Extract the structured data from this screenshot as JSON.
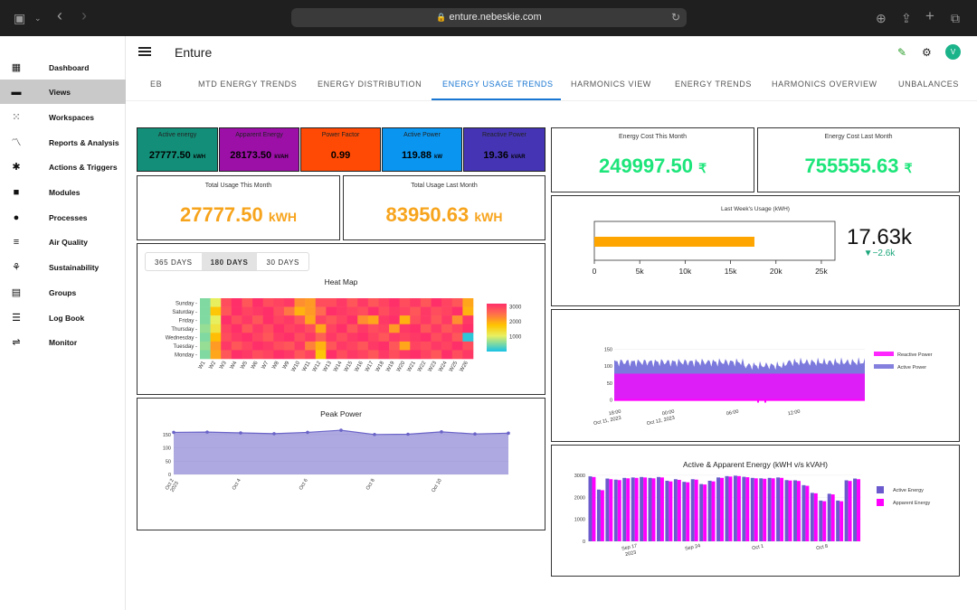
{
  "browser": {
    "url": "enture.nebeskie.com"
  },
  "app": {
    "title": "Enture",
    "avatar_initial": "V"
  },
  "sidebar": {
    "items": [
      {
        "label": "Dashboard",
        "icon": "dashboard-icon"
      },
      {
        "label": "Views",
        "icon": "views-icon",
        "active": true
      },
      {
        "label": "Workspaces",
        "icon": "workspaces-icon"
      },
      {
        "label": "Reports & Analysis",
        "icon": "reports-icon"
      },
      {
        "label": "Actions & Triggers",
        "icon": "alarm-icon"
      },
      {
        "label": "Modules",
        "icon": "modules-icon"
      },
      {
        "label": "Processes",
        "icon": "processes-icon"
      },
      {
        "label": "Air Quality",
        "icon": "air-icon"
      },
      {
        "label": "Sustainability",
        "icon": "sprout-icon"
      },
      {
        "label": "Groups",
        "icon": "groups-icon"
      },
      {
        "label": "Log Book",
        "icon": "logbook-icon"
      },
      {
        "label": "Monitor",
        "icon": "monitor-icon"
      }
    ]
  },
  "tabs": [
    "EB",
    "MTD ENERGY TRENDS",
    "ENERGY DISTRIBUTION",
    "ENERGY USAGE TRENDS",
    "HARMONICS VIEW",
    "ENERGY TRENDS",
    "HARMONICS OVERVIEW",
    "UNBALANCES"
  ],
  "active_tab": "ENERGY USAGE TRENDS",
  "kpis": [
    {
      "label": "Active energy",
      "value": "27777.50",
      "unit": "kWH",
      "color": "#138f79"
    },
    {
      "label": "Apparent Energy",
      "value": "28173.50",
      "unit": "kVAH",
      "color": "#9c10a8"
    },
    {
      "label": "Power Factor",
      "value": "0.99",
      "unit": "",
      "color": "#ff4a05"
    },
    {
      "label": "Active Power",
      "value": "119.88",
      "unit": "kW",
      "color": "#0a96f0"
    },
    {
      "label": "Reactive Power",
      "value": "19.36",
      "unit": "kVAR",
      "color": "#4535b4"
    }
  ],
  "usage": {
    "this_month_label": "Total Usage This Month",
    "this_month_value": "27777.50",
    "this_month_unit": "kWH",
    "last_month_label": "Total Usage Last Month",
    "last_month_value": "83950.63",
    "last_month_unit": "kWH"
  },
  "cost": {
    "this_month_label": "Energy Cost This Month",
    "this_month_value": "249997.50",
    "currency": "₹",
    "last_month_label": "Energy Cost Last Month",
    "last_month_value": "755555.63"
  },
  "heatmap": {
    "buttons": [
      "365 DAYS",
      "180 DAYS",
      "30 DAYS"
    ],
    "selected": "180 DAYS"
  },
  "bullet": {
    "value_text": "17.63k",
    "delta_text": "▼−2.6k"
  },
  "colors": {
    "accent": "#1976d2",
    "green_value": "#1de57a",
    "orange_value": "#f7a41d",
    "bar_orange": "#ffa500",
    "delta": "#1aa67a"
  },
  "chart_data": [
    {
      "type": "heatmap",
      "title": "Heat Map",
      "rows": [
        "Sunday",
        "Saturday",
        "Friday",
        "Thursday",
        "Wednesday",
        "Tuesday",
        "Monday"
      ],
      "columns": [
        "W1",
        "W2",
        "W3",
        "W4",
        "W5",
        "W6",
        "W7",
        "W8",
        "W9",
        "W10",
        "W11",
        "W12",
        "W13",
        "W14",
        "W15",
        "W16",
        "W17",
        "W18",
        "W19",
        "W20",
        "W21",
        "W22",
        "W23",
        "W24",
        "W25",
        "W26"
      ],
      "colorbar_ticks": [
        1000,
        2000,
        3000
      ],
      "values": [
        [
          500,
          1000,
          2700,
          3000,
          2600,
          3000,
          2700,
          2800,
          2900,
          2100,
          2000,
          2700,
          2700,
          2900,
          2600,
          2900,
          2600,
          2800,
          3000,
          2700,
          2900,
          2600,
          3000,
          2800,
          2600,
          1900
        ],
        [
          500,
          1600,
          2600,
          3000,
          2800,
          2900,
          3000,
          2700,
          2300,
          1800,
          2000,
          2400,
          3000,
          2900,
          2800,
          2700,
          3000,
          2700,
          2900,
          2800,
          2600,
          2900,
          2700,
          2800,
          3000,
          1800
        ],
        [
          500,
          1000,
          3000,
          2700,
          2900,
          2600,
          3000,
          2800,
          2900,
          2600,
          1900,
          2800,
          2600,
          2800,
          3000,
          2100,
          1900,
          2900,
          3000,
          1800,
          2700,
          2900,
          2600,
          2900,
          2100,
          2900
        ],
        [
          600,
          1200,
          2800,
          3000,
          2600,
          2900,
          2700,
          3000,
          2800,
          2900,
          2700,
          1900,
          2800,
          3000,
          2600,
          2900,
          2700,
          2800,
          2000,
          2900,
          3000,
          2600,
          2900,
          2600,
          2800,
          3000
        ],
        [
          500,
          1700,
          2700,
          2900,
          3000,
          2800,
          2600,
          2900,
          3000,
          2700,
          2900,
          2500,
          2900,
          2700,
          2900,
          3000,
          2800,
          2600,
          2900,
          2800,
          2900,
          3000,
          2700,
          2900,
          2600,
          100
        ],
        [
          600,
          2000,
          2900,
          2600,
          2800,
          3000,
          2900,
          2700,
          2600,
          2900,
          2200,
          1800,
          2600,
          2900,
          2800,
          2600,
          2900,
          3000,
          2600,
          1900,
          2800,
          2700,
          2900,
          2800,
          3000,
          2700
        ],
        [
          500,
          1900,
          2600,
          3000,
          2900,
          2700,
          2800,
          3000,
          2900,
          2600,
          2800,
          1600,
          3000,
          2700,
          2900,
          2800,
          2600,
          2900,
          2700,
          2900,
          3000,
          2800,
          2600,
          3000,
          2700,
          2900
        ]
      ]
    },
    {
      "type": "area",
      "title": "Peak Power",
      "x_ticks": [
        "Oct 2\n2023",
        "Oct 4",
        "Oct 6",
        "Oct 8",
        "Oct 10"
      ],
      "x": [
        0,
        1,
        2,
        3,
        4,
        5,
        6,
        7,
        8,
        9,
        10
      ],
      "values": [
        158,
        159,
        156,
        153,
        158,
        166,
        150,
        151,
        160,
        152,
        155
      ],
      "yticks": [
        0,
        50,
        100,
        150
      ],
      "ylim": [
        0,
        190
      ],
      "color": "#6b64c8"
    },
    {
      "type": "bar",
      "title": "Last Week's Usage (kWH)",
      "orientation": "horizontal",
      "values": [
        17630
      ],
      "xlim": [
        0,
        26500
      ],
      "xticks": [
        "0",
        "5k",
        "10k",
        "15k",
        "20k",
        "25k"
      ],
      "color": "#ffa500"
    },
    {
      "type": "area",
      "series": [
        {
          "name": "Reactive Power",
          "color": "#ff00ff",
          "level": 0
        },
        {
          "name": "Active Power",
          "color": "#6e6ad8",
          "level": 112
        }
      ],
      "yticks": [
        0,
        50,
        100,
        150
      ],
      "ylim": [
        -20,
        165
      ],
      "x_ticks": [
        "18:00\nOct 11, 2023",
        "00:00\nOct 12, 2023",
        "06:00",
        "12:00"
      ]
    },
    {
      "type": "bar",
      "title": "Active & Apparent Energy (kWH v/s kVAH)",
      "series": [
        {
          "name": "Active Energy",
          "color": "#6a5acd",
          "values": [
            2950,
            2350,
            2850,
            2800,
            2880,
            2900,
            2920,
            2880,
            2920,
            2750,
            2820,
            2700,
            2820,
            2600,
            2750,
            2900,
            2960,
            2980,
            2930,
            2880,
            2860,
            2880,
            2900,
            2780,
            2770,
            2550,
            2200,
            1850,
            2160,
            1850,
            2770,
            2850
          ]
        },
        {
          "name": "Apparent Energy",
          "color": "#ff00ff",
          "values": [
            2920,
            2320,
            2820,
            2780,
            2860,
            2880,
            2900,
            2860,
            2900,
            2720,
            2790,
            2680,
            2800,
            2580,
            2720,
            2880,
            2940,
            2960,
            2910,
            2860,
            2840,
            2860,
            2880,
            2760,
            2740,
            2520,
            2180,
            1820,
            2130,
            1820,
            2740,
            2820
          ]
        }
      ],
      "yticks": [
        0,
        1000,
        2000,
        3000
      ],
      "ylim": [
        0,
        3200
      ],
      "x_ticks": [
        "Sep 17\n2023",
        "Sep 24",
        "Oct 1",
        "Oct 8"
      ]
    }
  ]
}
